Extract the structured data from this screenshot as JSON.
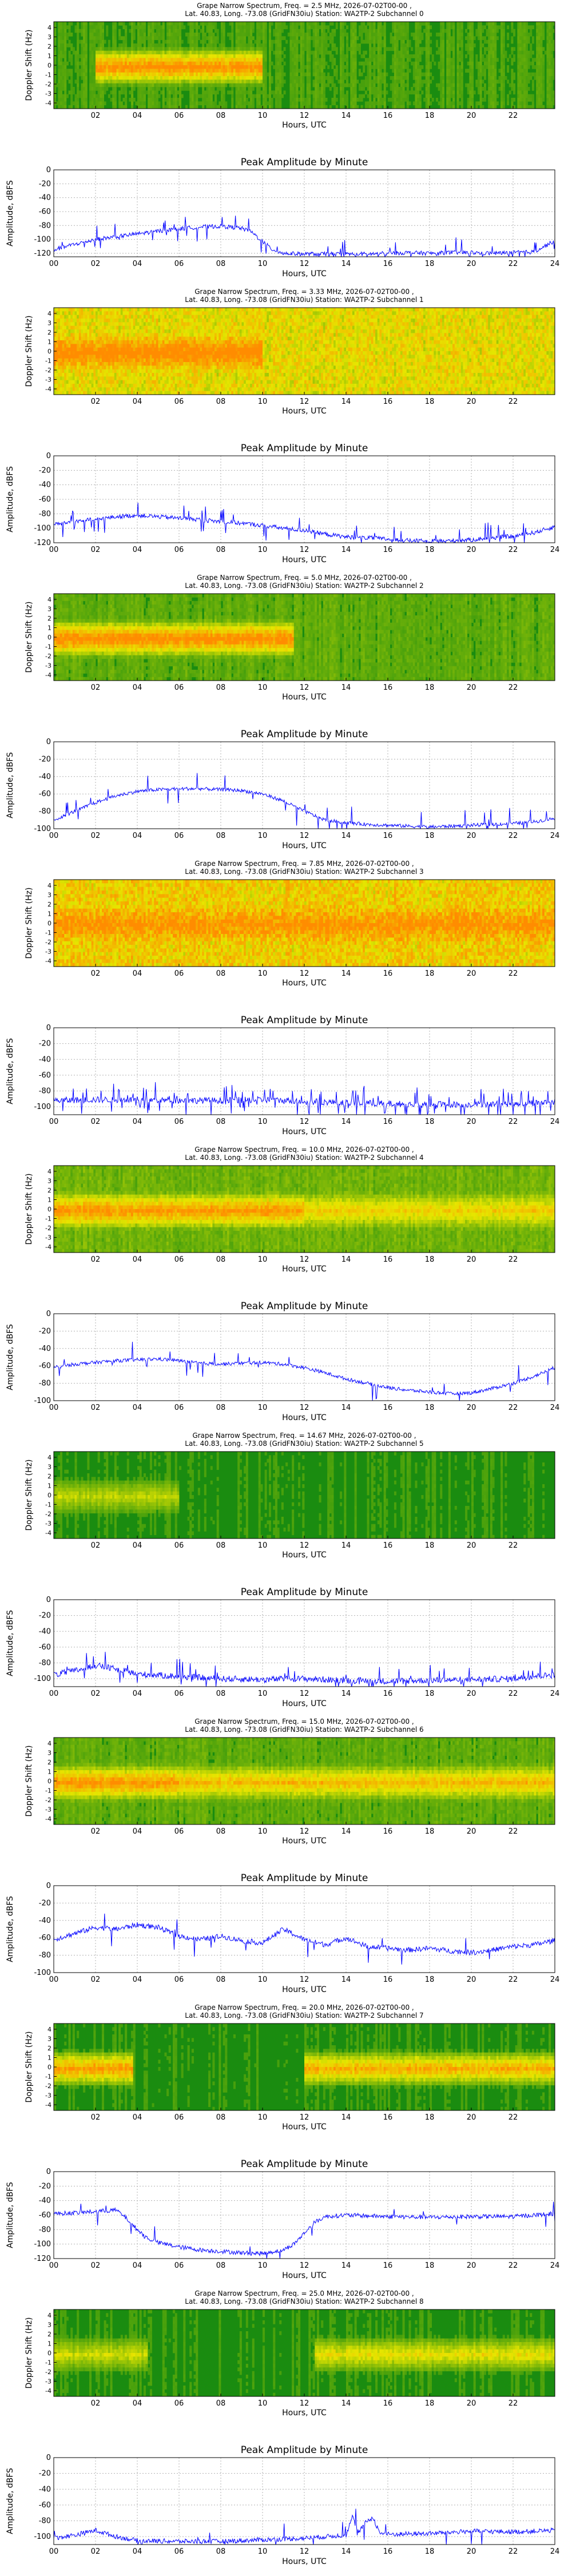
{
  "palette": {
    "spec_bg": "#1a8c10",
    "spec_hot": "#ff8c00",
    "spec_warm": "#e6e600",
    "line": "#0000ff",
    "grid": "#b0b0b0"
  },
  "shared": {
    "spec_xlabel": "Hours, UTC",
    "spec_ylabel": "Doppler Shift (Hz)",
    "spec_xticks": [
      "02",
      "04",
      "06",
      "08",
      "10",
      "12",
      "14",
      "16",
      "18",
      "20",
      "22"
    ],
    "spec_yticks": [
      "4",
      "3",
      "2",
      "1",
      "0",
      "-1",
      "-2",
      "-3",
      "-4"
    ],
    "amp_title": "Peak Amplitude by Minute",
    "amp_xlabel": "Hours, UTC",
    "amp_ylabel": "Amplitude, dBFS",
    "amp_xticks": [
      "00",
      "02",
      "04",
      "06",
      "08",
      "10",
      "12",
      "14",
      "16",
      "18",
      "20",
      "22",
      "24"
    ]
  },
  "chart_data": [
    {
      "type": "heatmap",
      "title_line1": "Grape Narrow Spectrum, Freq. = 2.5 MHz, 2026-07-02T00-00 ,",
      "title_line2": "Lat.  40.83, Long. -73.08 (GridFN30iu) Station: WA2TP-2 Subchannel 0",
      "xlabel": "Hours, UTC",
      "ylabel": "Doppler Shift (Hz)",
      "xlim": [
        0,
        24
      ],
      "ylim": [
        -5,
        5
      ],
      "activity": [
        [
          2,
          10,
          0.9
        ]
      ],
      "yellow_overall": 0.1
    },
    {
      "type": "line",
      "title": "Peak Amplitude by Minute",
      "xlabel": "Hours, UTC",
      "ylabel": "Amplitude, dBFS",
      "xlim": [
        0,
        24
      ],
      "ylim": [
        -125,
        0
      ],
      "yticks": [
        0,
        -20,
        -40,
        -60,
        -80,
        -100,
        -120
      ],
      "x": [
        0,
        1,
        2,
        3,
        4,
        5,
        6,
        7,
        8,
        9,
        9.5,
        10,
        10.5,
        11,
        12,
        13,
        14,
        15,
        16,
        17,
        18,
        19,
        20,
        21,
        22,
        23,
        24
      ],
      "y": [
        -115,
        -107,
        -100,
        -96,
        -92,
        -88,
        -85,
        -82,
        -81,
        -84,
        -90,
        -103,
        -115,
        -120,
        -121,
        -121,
        -121,
        -121,
        -120,
        -119,
        -120,
        -119,
        -119,
        -120,
        -119,
        -118,
        -102
      ],
      "noise": 3,
      "spikes": 0.06
    },
    {
      "type": "heatmap",
      "title_line1": "Grape Narrow Spectrum, Freq. = 3.33 MHz, 2026-07-02T00-00 ,",
      "title_line2": "Lat.  40.83, Long. -73.08 (GridFN30iu) Station: WA2TP-2 Subchannel 1",
      "xlabel": "Hours, UTC",
      "ylabel": "Doppler Shift (Hz)",
      "xlim": [
        0,
        24
      ],
      "ylim": [
        -5,
        5
      ],
      "activity": [
        [
          0,
          10,
          0.55
        ]
      ],
      "yellow_overall": 0.6
    },
    {
      "type": "line",
      "title": "Peak Amplitude by Minute",
      "xlabel": "Hours, UTC",
      "ylabel": "Amplitude, dBFS",
      "xlim": [
        0,
        24
      ],
      "ylim": [
        -120,
        0
      ],
      "yticks": [
        0,
        -20,
        -40,
        -60,
        -80,
        -100,
        -120
      ],
      "x": [
        0,
        1,
        2,
        3,
        4,
        5,
        6,
        7,
        8,
        9,
        10,
        11,
        12,
        13,
        14,
        15,
        16,
        17,
        18,
        19,
        20,
        21,
        22,
        23,
        24
      ],
      "y": [
        -95,
        -90,
        -88,
        -84,
        -82,
        -84,
        -86,
        -88,
        -91,
        -93,
        -96,
        -100,
        -103,
        -108,
        -112,
        -113,
        -115,
        -117,
        -118,
        -117,
        -116,
        -113,
        -111,
        -106,
        -98
      ],
      "noise": 3,
      "spikes": 0.07
    },
    {
      "type": "heatmap",
      "title_line1": "Grape Narrow Spectrum, Freq. = 5.0 MHz, 2026-07-02T00-00 ,",
      "title_line2": "Lat.  40.83, Long. -73.08 (GridFN30iu) Station: WA2TP-2 Subchannel 2",
      "xlabel": "Hours, UTC",
      "ylabel": "Doppler Shift (Hz)",
      "xlim": [
        0,
        24
      ],
      "ylim": [
        -5,
        5
      ],
      "activity": [
        [
          0,
          11.5,
          0.9
        ]
      ],
      "yellow_overall": 0.15
    },
    {
      "type": "line",
      "title": "Peak Amplitude by Minute",
      "xlabel": "Hours, UTC",
      "ylabel": "Amplitude, dBFS",
      "xlim": [
        0,
        24
      ],
      "ylim": [
        -100,
        0
      ],
      "yticks": [
        0,
        -20,
        -40,
        -60,
        -80,
        -100
      ],
      "x": [
        0,
        1,
        2,
        3,
        4,
        5,
        6,
        7,
        8,
        9,
        10,
        11,
        12,
        13,
        14,
        15,
        16,
        17,
        18,
        19,
        20,
        21,
        22,
        23,
        24
      ],
      "y": [
        -90,
        -80,
        -70,
        -62,
        -57,
        -55,
        -54,
        -54,
        -55,
        -56,
        -60,
        -68,
        -80,
        -90,
        -93,
        -95,
        -96,
        -97,
        -98,
        -97,
        -96,
        -95,
        -94,
        -92,
        -88
      ],
      "noise": 2,
      "spikes": 0.05
    },
    {
      "type": "heatmap",
      "title_line1": "Grape Narrow Spectrum, Freq. = 7.85 MHz, 2026-07-02T00-00 ,",
      "title_line2": "Lat.  40.83, Long. -73.08 (GridFN30iu) Station: WA2TP-2 Subchannel 3",
      "xlabel": "Hours, UTC",
      "ylabel": "Doppler Shift (Hz)",
      "xlim": [
        0,
        24
      ],
      "ylim": [
        -5,
        5
      ],
      "activity": [
        [
          0,
          24,
          0.35
        ]
      ],
      "yellow_overall": 0.7
    },
    {
      "type": "line",
      "title": "Peak Amplitude by Minute",
      "xlabel": "Hours, UTC",
      "ylabel": "Amplitude, dBFS",
      "xlim": [
        0,
        24
      ],
      "ylim": [
        -110,
        0
      ],
      "yticks": [
        0,
        -20,
        -40,
        -60,
        -80,
        -100
      ],
      "x": [
        0,
        2,
        4,
        6,
        8,
        10,
        12,
        14,
        16,
        18,
        20,
        22,
        24
      ],
      "y": [
        -92,
        -91,
        -91,
        -92,
        -92,
        -91,
        -93,
        -95,
        -96,
        -97,
        -97,
        -96,
        -94
      ],
      "noise": 4,
      "spikes": 0.18
    },
    {
      "type": "heatmap",
      "title_line1": "Grape Narrow Spectrum, Freq. = 10.0 MHz, 2026-07-02T00-00 ,",
      "title_line2": "Lat.  40.83, Long. -73.08 (GridFN30iu) Station: WA2TP-2 Subchannel 4",
      "xlabel": "Hours, UTC",
      "ylabel": "Doppler Shift (Hz)",
      "xlim": [
        0,
        24
      ],
      "ylim": [
        -5,
        5
      ],
      "activity": [
        [
          0,
          12,
          0.75
        ],
        [
          12,
          24,
          0.45
        ]
      ],
      "yellow_overall": 0.2
    },
    {
      "type": "line",
      "title": "Peak Amplitude by Minute",
      "xlabel": "Hours, UTC",
      "ylabel": "Amplitude, dBFS",
      "xlim": [
        0,
        24
      ],
      "ylim": [
        -100,
        0
      ],
      "yticks": [
        0,
        -20,
        -40,
        -60,
        -80,
        -100
      ],
      "x": [
        0,
        1,
        2,
        3,
        4,
        5,
        6,
        7,
        8,
        9,
        10,
        11,
        12,
        13,
        14,
        15,
        16,
        17,
        18,
        19,
        20,
        21,
        22,
        23,
        24
      ],
      "y": [
        -62,
        -58,
        -56,
        -54,
        -53,
        -52,
        -54,
        -57,
        -58,
        -57,
        -56,
        -58,
        -62,
        -68,
        -75,
        -80,
        -85,
        -88,
        -90,
        -92,
        -91,
        -86,
        -80,
        -72,
        -62
      ],
      "noise": 2,
      "spikes": 0.03
    },
    {
      "type": "heatmap",
      "title_line1": "Grape Narrow Spectrum, Freq. = 14.67 MHz, 2026-07-02T00-00 ,",
      "title_line2": "Lat.  40.83, Long. -73.08 (GridFN30iu) Station: WA2TP-2 Subchannel 5",
      "xlabel": "Hours, UTC",
      "ylabel": "Doppler Shift (Hz)",
      "xlim": [
        0,
        24
      ],
      "ylim": [
        -5,
        5
      ],
      "activity": [
        [
          0,
          6,
          0.35
        ]
      ],
      "yellow_overall": 0.05
    },
    {
      "type": "line",
      "title": "Peak Amplitude by Minute",
      "xlabel": "Hours, UTC",
      "ylabel": "Amplitude, dBFS",
      "xlim": [
        0,
        24
      ],
      "ylim": [
        -110,
        0
      ],
      "yticks": [
        0,
        -20,
        -40,
        -60,
        -80,
        -100
      ],
      "x": [
        0,
        1,
        2,
        3,
        4,
        6,
        8,
        10,
        12,
        14,
        16,
        18,
        20,
        22,
        23,
        24
      ],
      "y": [
        -95,
        -90,
        -83,
        -88,
        -94,
        -97,
        -100,
        -101,
        -100,
        -102,
        -103,
        -102,
        -101,
        -100,
        -97,
        -95
      ],
      "noise": 4,
      "spikes": 0.08
    },
    {
      "type": "heatmap",
      "title_line1": "Grape Narrow Spectrum, Freq. = 15.0 MHz, 2026-07-02T00-00 ,",
      "title_line2": "Lat.  40.83, Long. -73.08 (GridFN30iu) Station: WA2TP-2 Subchannel 6",
      "xlabel": "Hours, UTC",
      "ylabel": "Doppler Shift (Hz)",
      "xlim": [
        0,
        24
      ],
      "ylim": [
        -5,
        5
      ],
      "activity": [
        [
          0,
          6,
          0.8
        ],
        [
          6,
          24,
          0.6
        ]
      ],
      "yellow_overall": 0.15
    },
    {
      "type": "line",
      "title": "Peak Amplitude by Minute",
      "xlabel": "Hours, UTC",
      "ylabel": "Amplitude, dBFS",
      "xlim": [
        0,
        24
      ],
      "ylim": [
        -100,
        0
      ],
      "yticks": [
        0,
        -20,
        -40,
        -60,
        -80,
        -100
      ],
      "x": [
        0,
        1,
        2,
        3,
        4,
        5,
        6,
        7,
        8,
        9,
        10,
        11,
        12,
        13,
        14,
        15,
        16,
        17,
        18,
        19,
        20,
        21,
        22,
        23,
        24
      ],
      "y": [
        -62,
        -55,
        -48,
        -50,
        -45,
        -48,
        -58,
        -62,
        -58,
        -63,
        -66,
        -50,
        -62,
        -68,
        -60,
        -70,
        -72,
        -74,
        -72,
        -75,
        -77,
        -74,
        -70,
        -68,
        -63
      ],
      "noise": 3,
      "spikes": 0.02
    },
    {
      "type": "heatmap",
      "title_line1": "Grape Narrow Spectrum, Freq. = 20.0 MHz, 2026-07-02T00-00 ,",
      "title_line2": "Lat.  40.83, Long. -73.08 (GridFN30iu) Station: WA2TP-2 Subchannel 7",
      "xlabel": "Hours, UTC",
      "ylabel": "Doppler Shift (Hz)",
      "xlim": [
        0,
        24
      ],
      "ylim": [
        -5,
        5
      ],
      "activity": [
        [
          0,
          3.8,
          0.85
        ],
        [
          12,
          24,
          0.75
        ]
      ],
      "yellow_overall": 0.05
    },
    {
      "type": "line",
      "title": "Peak Amplitude by Minute",
      "xlabel": "Hours, UTC",
      "ylabel": "Amplitude, dBFS",
      "xlim": [
        0,
        24
      ],
      "ylim": [
        -120,
        0
      ],
      "yticks": [
        0,
        -20,
        -40,
        -60,
        -80,
        -100,
        -120
      ],
      "x": [
        0,
        1,
        2,
        3,
        3.5,
        4,
        4.5,
        5,
        6,
        7,
        8,
        9,
        10,
        11,
        11.5,
        12,
        12.5,
        13,
        14,
        16,
        18,
        20,
        22,
        24
      ],
      "y": [
        -58,
        -57,
        -55,
        -53,
        -65,
        -80,
        -92,
        -98,
        -104,
        -108,
        -110,
        -112,
        -113,
        -108,
        -100,
        -85,
        -70,
        -62,
        -60,
        -62,
        -63,
        -62,
        -62,
        -58
      ],
      "noise": 3,
      "spikes": 0.02
    },
    {
      "type": "heatmap",
      "title_line1": "Grape Narrow Spectrum, Freq. = 25.0 MHz, 2026-07-02T00-00 ,",
      "title_line2": "Lat.  40.83, Long. -73.08 (GridFN30iu) Station: WA2TP-2 Subchannel 8",
      "xlabel": "Hours, UTC",
      "ylabel": "Doppler Shift (Hz)",
      "xlim": [
        0,
        24
      ],
      "ylim": [
        -5,
        5
      ],
      "activity": [
        [
          0,
          4.5,
          0.4
        ],
        [
          12.5,
          24,
          0.5
        ]
      ],
      "yellow_overall": 0.05
    },
    {
      "type": "line",
      "title": "Peak Amplitude by Minute",
      "xlabel": "Hours, UTC",
      "ylabel": "Amplitude, dBFS",
      "xlim": [
        0,
        24
      ],
      "ylim": [
        -110,
        0
      ],
      "yticks": [
        0,
        -20,
        -40,
        -60,
        -80,
        -100
      ],
      "x": [
        0,
        1,
        2,
        3,
        4,
        6,
        8,
        10,
        12,
        14,
        14.3,
        14.6,
        15,
        15.3,
        15.6,
        16,
        18,
        20,
        22,
        24
      ],
      "y": [
        -102,
        -98,
        -92,
        -100,
        -105,
        -106,
        -106,
        -104,
        -102,
        -98,
        -75,
        -95,
        -80,
        -76,
        -95,
        -97,
        -96,
        -93,
        -94,
        -92
      ],
      "noise": 3,
      "spikes": 0.03
    }
  ]
}
